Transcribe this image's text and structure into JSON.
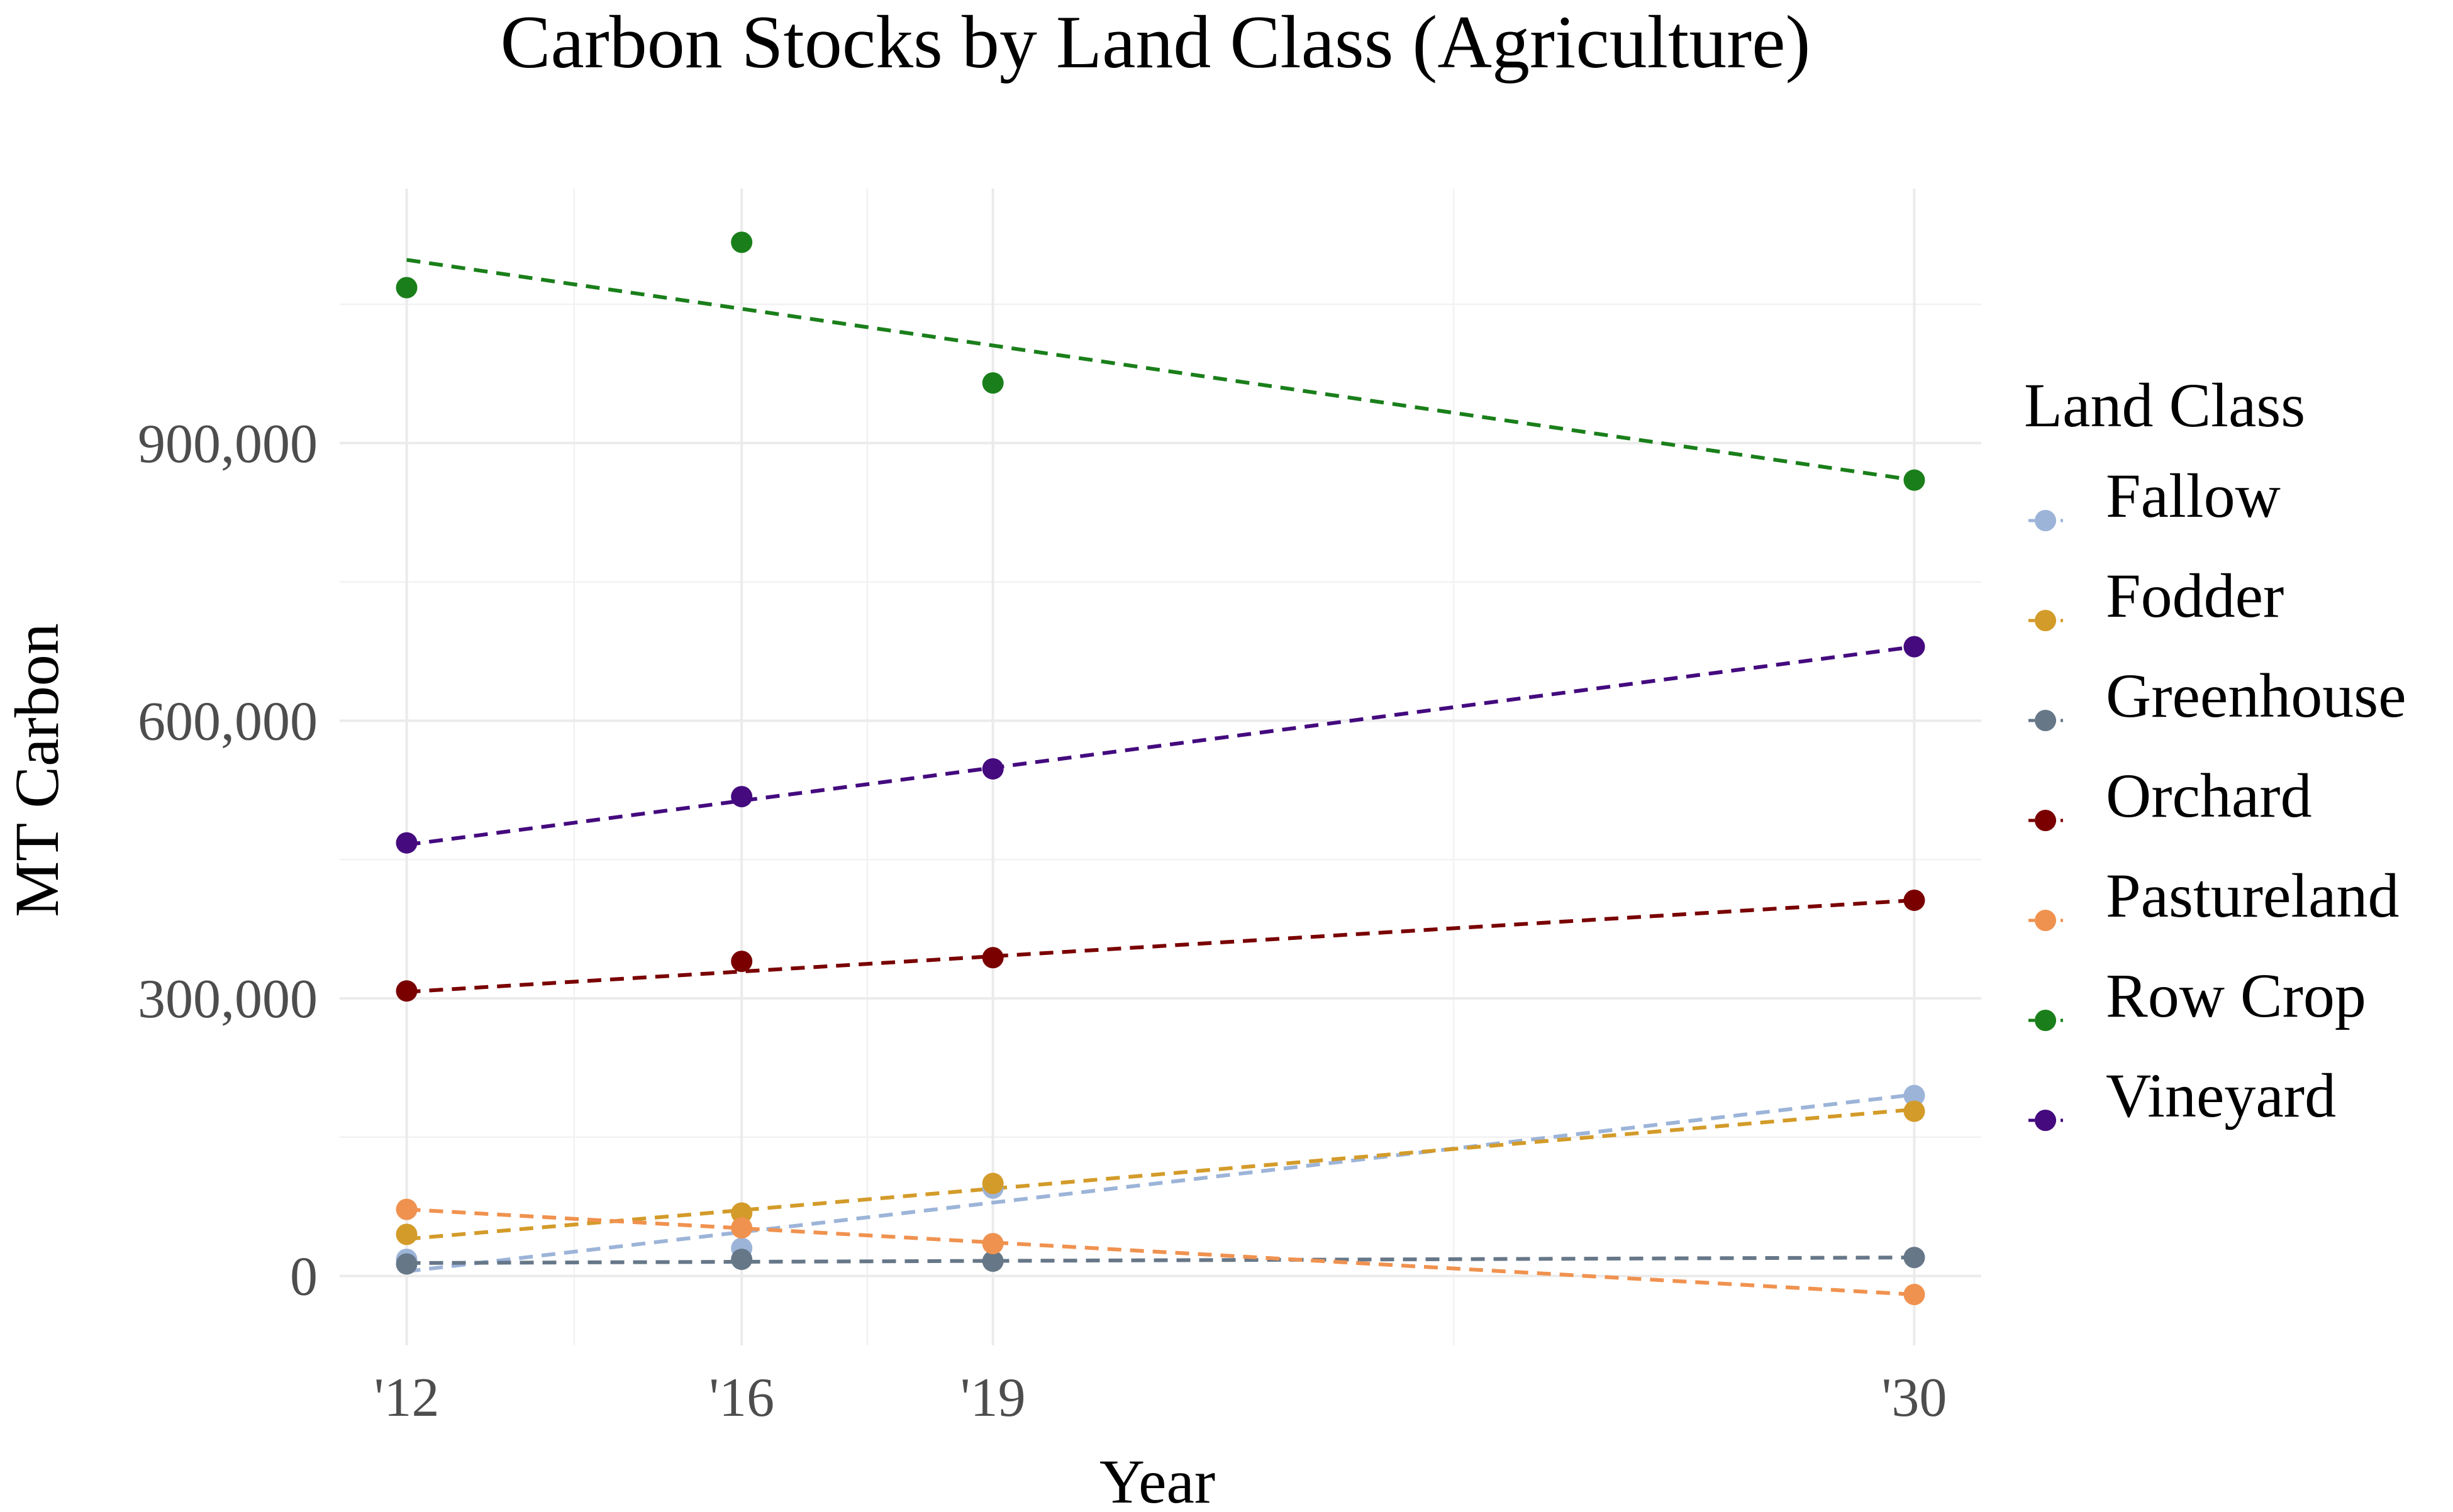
{
  "chart_data": {
    "type": "scatter",
    "title": "Carbon Stocks by Land Class (Agriculture)",
    "xlabel": "Year",
    "ylabel": "MT Carbon",
    "x_ticks": [
      {
        "value": 2012,
        "label": "'12"
      },
      {
        "value": 2016,
        "label": "'16"
      },
      {
        "value": 2019,
        "label": "'19"
      },
      {
        "value": 2030,
        "label": "'30"
      }
    ],
    "y_ticks": [
      {
        "value": 0,
        "label": "0"
      },
      {
        "value": 300000,
        "label": "300,000"
      },
      {
        "value": 600000,
        "label": "600,000"
      },
      {
        "value": 900000,
        "label": "900,000"
      }
    ],
    "xlim": [
      2011.2,
      2030.8
    ],
    "ylim": [
      -75000,
      1175000
    ],
    "grid": true,
    "trend_lines": "dashed linear fit per series",
    "legend": {
      "title": "Land Class",
      "position": "right"
    },
    "series": [
      {
        "name": "Fallow",
        "color": "#9cb4d8",
        "x": [
          2012,
          2016,
          2019,
          2030
        ],
        "y": [
          18000,
          30000,
          95000,
          195000
        ],
        "fit": [
          5000,
          196000
        ]
      },
      {
        "name": "Fodder",
        "color": "#d39b29",
        "x": [
          2012,
          2016,
          2019,
          2030
        ],
        "y": [
          45000,
          68000,
          100000,
          178000
        ],
        "fit": [
          40000,
          180000
        ]
      },
      {
        "name": "Greenhouse",
        "color": "#667788",
        "x": [
          2012,
          2016,
          2019,
          2030
        ],
        "y": [
          13000,
          18000,
          16000,
          20000
        ],
        "fit": [
          14000,
          20000
        ]
      },
      {
        "name": "Orchard",
        "color": "#7a0000",
        "x": [
          2012,
          2016,
          2019,
          2030
        ],
        "y": [
          308000,
          340000,
          344000,
          406000
        ],
        "fit": [
          307000,
          406000
        ]
      },
      {
        "name": "Pastureland",
        "color": "#f0924f",
        "x": [
          2012,
          2016,
          2019,
          2030
        ],
        "y": [
          72000,
          52000,
          35000,
          -20000
        ],
        "fit": [
          72000,
          -20000
        ]
      },
      {
        "name": "Row Crop",
        "color": "#1a7f1a",
        "x": [
          2012,
          2016,
          2019,
          2030
        ],
        "y": [
          1068000,
          1117000,
          965000,
          860000
        ],
        "fit": [
          1098000,
          860000
        ]
      },
      {
        "name": "Vineyard",
        "color": "#440a7e",
        "x": [
          2012,
          2016,
          2019,
          2030
        ],
        "y": [
          468000,
          518000,
          548000,
          680000
        ],
        "fit": [
          466000,
          680000
        ]
      }
    ]
  }
}
